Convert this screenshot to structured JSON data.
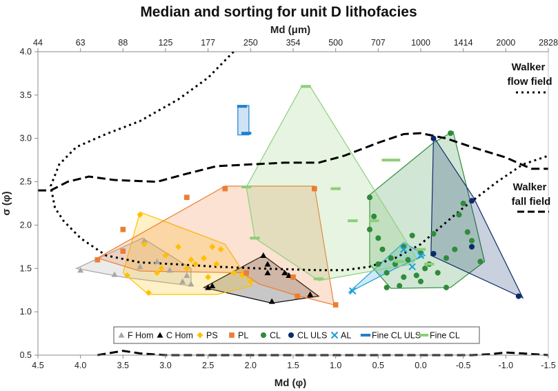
{
  "chart_data": {
    "type": "scatter",
    "title": "Median and sorting for unit D lithofacies",
    "xlabel": "Md (φ)",
    "ylabel": "σ (φ)",
    "x2label": "Md (μm)",
    "xlim": [
      4.5,
      -1.5
    ],
    "ylim": [
      0.5,
      4.0
    ],
    "x_ticks": [
      {
        "v": 4.5,
        "label": "4.5"
      },
      {
        "v": 4.0,
        "label": "4.0"
      },
      {
        "v": 3.5,
        "label": "3.5"
      },
      {
        "v": 3.0,
        "label": "3.0"
      },
      {
        "v": 2.5,
        "label": "2.5"
      },
      {
        "v": 2.0,
        "label": "2.0"
      },
      {
        "v": 1.5,
        "label": "1.5"
      },
      {
        "v": 1.0,
        "label": "1.0"
      },
      {
        "v": 0.5,
        "label": "0.5"
      },
      {
        "v": 0.0,
        "label": "0.0"
      },
      {
        "v": -0.5,
        "label": "-0.5"
      },
      {
        "v": -1.0,
        "label": "-1.0"
      },
      {
        "v": -1.5,
        "label": "-1.5"
      }
    ],
    "y_ticks": [
      {
        "v": 0.5,
        "label": "0.5"
      },
      {
        "v": 1.0,
        "label": "1.0"
      },
      {
        "v": 1.5,
        "label": "1.5"
      },
      {
        "v": 2.0,
        "label": "2.0"
      },
      {
        "v": 2.5,
        "label": "2.5"
      },
      {
        "v": 3.0,
        "label": "3.0"
      },
      {
        "v": 3.5,
        "label": "3.5"
      },
      {
        "v": 4.0,
        "label": "4.0"
      }
    ],
    "x2_ticks": [
      {
        "v": 4.5,
        "label": "44"
      },
      {
        "v": 4.0,
        "label": "63"
      },
      {
        "v": 3.5,
        "label": "88"
      },
      {
        "v": 3.0,
        "label": "125"
      },
      {
        "v": 2.5,
        "label": "177"
      },
      {
        "v": 2.0,
        "label": "250"
      },
      {
        "v": 1.5,
        "label": "354"
      },
      {
        "v": 1.0,
        "label": "500"
      },
      {
        "v": 0.5,
        "label": "707"
      },
      {
        "v": 0.0,
        "label": "1000"
      },
      {
        "v": -0.5,
        "label": "1414"
      },
      {
        "v": -1.0,
        "label": "2000"
      },
      {
        "v": -1.5,
        "label": "2828"
      }
    ],
    "annotations": [
      {
        "text": "Walker",
        "x": -1.15,
        "y": 3.62
      },
      {
        "text": "flow field",
        "x": -1.15,
        "y": 3.42
      },
      {
        "text": "Walker",
        "x": -1.15,
        "y": 2.28
      },
      {
        "text": "fall field",
        "x": -1.15,
        "y": 2.08
      }
    ],
    "walker_flow_field": {
      "name": "Walker flow field",
      "style": "dotted",
      "x": [
        2.2,
        2.5,
        2.85,
        3.3,
        3.7,
        4.05,
        4.25,
        4.35,
        4.3,
        4.2,
        4.0,
        3.7,
        3.3,
        2.9,
        2.4,
        1.9,
        1.2,
        0.9,
        0.6,
        0.3,
        0.0,
        -0.2,
        -0.5,
        -0.9,
        -1.2,
        -1.5
      ],
      "y": [
        4.0,
        3.7,
        3.45,
        3.2,
        3.05,
        2.9,
        2.7,
        2.45,
        2.2,
        2.05,
        1.85,
        1.65,
        1.57,
        1.55,
        1.52,
        1.5,
        1.48,
        1.48,
        1.52,
        1.62,
        1.78,
        1.95,
        2.2,
        2.5,
        2.7,
        2.8
      ]
    },
    "walker_fall_field_upper": {
      "name": "Walker fall field",
      "style": "dashed",
      "x": [
        4.5,
        4.35,
        4.15,
        3.9,
        3.6,
        3.1,
        2.8,
        2.4,
        2.0,
        1.6,
        1.2,
        0.9,
        0.5,
        0.2,
        0.0,
        -0.3,
        -0.6,
        -1.0,
        -1.3,
        -1.5
      ],
      "y": [
        2.4,
        2.4,
        2.5,
        2.56,
        2.52,
        2.5,
        2.58,
        2.68,
        2.7,
        2.72,
        2.72,
        2.8,
        2.95,
        3.05,
        3.06,
        3.0,
        2.9,
        2.78,
        2.65,
        2.65
      ]
    },
    "walker_fall_field_lower": {
      "name": "Walker fall field bottom",
      "style": "dashed",
      "x": [
        3.8,
        3.5,
        3.3,
        3.0,
        2.8,
        -0.6,
        -0.8,
        -1.0,
        -1.2,
        -1.5
      ],
      "y": [
        0.5,
        0.55,
        0.52,
        0.5,
        0.5,
        0.5,
        0.51,
        0.53,
        0.52,
        0.5
      ]
    },
    "series": [
      {
        "name": "F Hom",
        "marker": "triangle",
        "color": "#a6a6a6",
        "points": [
          [
            4.0,
            1.48
          ],
          [
            3.6,
            1.43
          ],
          [
            3.25,
            1.82
          ],
          [
            3.1,
            1.58
          ],
          [
            2.95,
            1.48
          ],
          [
            2.75,
            1.42
          ],
          [
            2.7,
            1.32
          ],
          [
            2.8,
            1.35
          ],
          [
            3.3,
            1.52
          ]
        ],
        "hull": [
          [
            4.05,
            1.5
          ],
          [
            3.27,
            1.85
          ],
          [
            2.7,
            1.5
          ],
          [
            2.7,
            1.3
          ],
          [
            3.5,
            1.4
          ]
        ]
      },
      {
        "name": "C Hom",
        "marker": "triangle",
        "color": "#000000",
        "points": [
          [
            2.5,
            1.28
          ],
          [
            2.45,
            1.3
          ],
          [
            1.85,
            1.65
          ],
          [
            1.8,
            1.55
          ],
          [
            1.75,
            1.12
          ],
          [
            1.6,
            1.45
          ],
          [
            1.55,
            1.42
          ],
          [
            1.3,
            1.2
          ],
          [
            1.8,
            1.45
          ]
        ],
        "hull": [
          [
            2.55,
            1.28
          ],
          [
            1.85,
            1.65
          ],
          [
            1.2,
            1.18
          ],
          [
            1.75,
            1.1
          ]
        ]
      },
      {
        "name": "PS",
        "marker": "diamond",
        "color": "#ffc000",
        "points": [
          [
            3.3,
            2.12
          ],
          [
            3.25,
            1.78
          ],
          [
            3.0,
            1.65
          ],
          [
            2.85,
            1.75
          ],
          [
            2.75,
            1.5
          ],
          [
            2.55,
            1.62
          ],
          [
            2.35,
            1.72
          ],
          [
            2.4,
            1.55
          ],
          [
            2.2,
            1.45
          ],
          [
            2.1,
            1.42
          ],
          [
            2.0,
            1.35
          ],
          [
            3.2,
            1.22
          ],
          [
            2.5,
            1.4
          ],
          [
            3.45,
            1.42
          ],
          [
            2.65,
            1.55
          ],
          [
            3.1,
            1.45
          ],
          [
            3.05,
            1.5
          ],
          [
            2.45,
            1.75
          ],
          [
            2.7,
            1.6
          ]
        ],
        "hull": [
          [
            3.3,
            2.15
          ],
          [
            2.3,
            1.78
          ],
          [
            1.98,
            1.3
          ],
          [
            2.4,
            1.2
          ],
          [
            3.2,
            1.2
          ],
          [
            3.5,
            1.45
          ]
        ]
      },
      {
        "name": "PL",
        "marker": "square",
        "color": "#ed7d31",
        "points": [
          [
            3.8,
            1.6
          ],
          [
            3.5,
            1.95
          ],
          [
            3.5,
            1.7
          ],
          [
            2.75,
            2.32
          ],
          [
            2.3,
            2.42
          ],
          [
            2.05,
            1.45
          ],
          [
            1.5,
            1.4
          ],
          [
            1.45,
            1.18
          ],
          [
            1.0,
            1.08
          ],
          [
            1.25,
            2.42
          ]
        ],
        "hull": [
          [
            3.8,
            1.62
          ],
          [
            2.3,
            2.45
          ],
          [
            1.25,
            2.45
          ],
          [
            1.02,
            1.08
          ],
          [
            1.5,
            1.2
          ],
          [
            1.9,
            1.32
          ],
          [
            2.1,
            1.45
          ],
          [
            3.3,
            1.47
          ]
        ]
      },
      {
        "name": "CL",
        "marker": "circle",
        "color": "#2e8b3a",
        "points": [
          [
            0.6,
            2.32
          ],
          [
            0.55,
            2.1
          ],
          [
            0.5,
            1.85
          ],
          [
            0.45,
            1.72
          ],
          [
            0.35,
            1.62
          ],
          [
            0.3,
            1.55
          ],
          [
            0.2,
            1.75
          ],
          [
            0.1,
            1.88
          ],
          [
            0.0,
            1.68
          ],
          [
            -0.1,
            1.55
          ],
          [
            -0.2,
            1.45
          ],
          [
            -0.3,
            1.62
          ],
          [
            -0.4,
            1.72
          ],
          [
            -0.45,
            2.12
          ],
          [
            -0.5,
            2.25
          ],
          [
            -0.55,
            1.92
          ],
          [
            -0.6,
            1.82
          ],
          [
            -0.7,
            1.58
          ],
          [
            0.4,
            1.28
          ],
          [
            0.2,
            1.4
          ],
          [
            0.0,
            1.35
          ],
          [
            -0.3,
            1.28
          ],
          [
            -0.35,
            3.06
          ],
          [
            0.6,
            1.95
          ],
          [
            0.5,
            1.55
          ],
          [
            0.15,
            1.6
          ],
          [
            -0.05,
            1.5
          ],
          [
            0.25,
            1.3
          ],
          [
            0.05,
            1.42
          ],
          [
            -0.15,
            1.9
          ],
          [
            0.4,
            1.45
          ]
        ],
        "hull": [
          [
            0.6,
            2.35
          ],
          [
            -0.15,
            2.95
          ],
          [
            -0.38,
            3.08
          ],
          [
            -0.65,
            2.0
          ],
          [
            -0.75,
            1.58
          ],
          [
            -0.35,
            1.28
          ],
          [
            0.35,
            1.27
          ],
          [
            0.6,
            1.55
          ]
        ]
      },
      {
        "name": "CL ULS",
        "marker": "circle",
        "color": "#0b2a6b",
        "points": [
          [
            -0.15,
            3.0
          ],
          [
            -0.6,
            2.28
          ],
          [
            -0.6,
            1.75
          ],
          [
            -0.15,
            1.67
          ],
          [
            -1.15,
            1.18
          ]
        ],
        "hull": [
          [
            -0.15,
            3.02
          ],
          [
            -0.62,
            2.32
          ],
          [
            -1.2,
            1.16
          ],
          [
            -0.12,
            1.65
          ]
        ]
      },
      {
        "name": "AL",
        "marker": "x",
        "color": "#1a9fd8",
        "points": [
          [
            0.8,
            1.24
          ],
          [
            0.2,
            1.72
          ],
          [
            0.0,
            1.65
          ],
          [
            0.1,
            1.52
          ]
        ],
        "hull": [
          [
            0.85,
            1.22
          ],
          [
            0.2,
            1.8
          ],
          [
            -0.05,
            1.65
          ],
          [
            0.3,
            1.5
          ]
        ]
      },
      {
        "name": "Fine CL ULS",
        "marker": "dash",
        "color": "#1f7fcf",
        "points": [
          [
            2.1,
            3.37
          ],
          [
            2.05,
            3.06
          ]
        ],
        "hull": [
          [
            2.15,
            3.38
          ],
          [
            2.02,
            3.38
          ],
          [
            2.02,
            3.04
          ],
          [
            2.15,
            3.04
          ]
        ]
      },
      {
        "name": "Fine CL",
        "marker": "dash",
        "color": "#8ccf78",
        "points": [
          [
            1.35,
            3.6
          ],
          [
            2.05,
            2.44
          ],
          [
            1.95,
            1.85
          ],
          [
            1.2,
            1.38
          ],
          [
            1.0,
            2.42
          ],
          [
            0.8,
            2.05
          ],
          [
            0.55,
            2.05
          ],
          [
            0.4,
            2.75
          ],
          [
            0.3,
            2.75
          ],
          [
            0.25,
            1.58
          ],
          [
            0.0,
            1.72
          ],
          [
            -0.1,
            1.55
          ]
        ],
        "hull": [
          [
            1.4,
            3.6
          ],
          [
            1.3,
            3.6
          ],
          [
            0.05,
            1.62
          ],
          [
            0.1,
            1.55
          ],
          [
            1.2,
            1.36
          ],
          [
            1.95,
            1.85
          ],
          [
            2.05,
            2.44
          ]
        ]
      }
    ]
  }
}
